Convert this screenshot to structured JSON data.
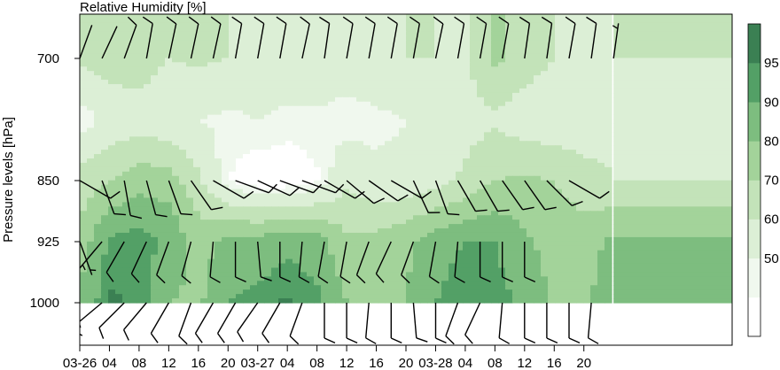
{
  "chart_data": {
    "type": "heatmap",
    "title": "Relative Humidity [%]",
    "ylabel": "Pressure levels [hPa]",
    "xlabel": "",
    "y_ticks": [
      700,
      850,
      925,
      1000
    ],
    "x_ticks": [
      "03-26",
      "04",
      "08",
      "12",
      "16",
      "20",
      "03-27",
      "04",
      "08",
      "12",
      "16",
      "20",
      "03-28",
      "04",
      "08",
      "12",
      "16",
      "20"
    ],
    "colorbar": {
      "ticks": [
        50,
        60,
        70,
        80,
        90,
        95
      ],
      "levels": [
        0,
        45,
        50,
        60,
        70,
        80,
        90,
        95,
        100
      ],
      "colors": [
        "#ffffff",
        "#f0f8ee",
        "#dcefd6",
        "#c3e3b9",
        "#a3d39a",
        "#7dbd7f",
        "#53a066",
        "#3b8053"
      ]
    },
    "times": [
      0,
      4,
      8,
      12,
      16,
      20,
      24,
      28,
      32,
      36,
      40,
      44,
      48,
      52,
      56,
      60,
      64,
      68,
      72
    ],
    "levels_hpa": [
      700,
      775,
      850,
      925,
      1000
    ],
    "rh": [
      [
        62,
        66,
        66,
        60,
        62,
        60,
        58,
        56,
        58,
        56,
        58,
        60,
        60,
        58,
        72,
        65,
        60,
        58,
        60
      ],
      [
        46,
        52,
        54,
        52,
        50,
        48,
        50,
        48,
        48,
        46,
        48,
        50,
        52,
        56,
        58,
        54,
        52,
        54,
        58
      ],
      [
        64,
        70,
        76,
        75,
        62,
        45,
        40,
        40,
        44,
        58,
        52,
        52,
        56,
        62,
        70,
        72,
        70,
        64,
        60
      ],
      [
        74,
        92,
        94,
        88,
        76,
        83,
        84,
        88,
        85,
        72,
        74,
        78,
        86,
        90,
        90,
        82,
        76,
        76,
        82
      ],
      [
        82,
        96,
        94,
        80,
        78,
        90,
        93,
        96,
        92,
        80,
        75,
        80,
        90,
        95,
        94,
        88,
        78,
        76,
        90
      ]
    ],
    "wind_barbs": {
      "700": [
        [
          0,
          2,
          20
        ],
        [
          3,
          2,
          25
        ],
        [
          6,
          10,
          20
        ],
        [
          9,
          10,
          10
        ],
        [
          12,
          10,
          12
        ],
        [
          15,
          10,
          12
        ],
        [
          18,
          10,
          12
        ],
        [
          21,
          10,
          10
        ],
        [
          24,
          10,
          10
        ],
        [
          27,
          10,
          10
        ],
        [
          30,
          10,
          12
        ],
        [
          33,
          10,
          8
        ],
        [
          36,
          10,
          10
        ],
        [
          39,
          10,
          10
        ],
        [
          42,
          10,
          10
        ],
        [
          45,
          10,
          10
        ],
        [
          48,
          10,
          12
        ],
        [
          51,
          10,
          10
        ],
        [
          54,
          10,
          10
        ],
        [
          57,
          10,
          10
        ],
        [
          60,
          10,
          8
        ],
        [
          63,
          10,
          8
        ],
        [
          66,
          10,
          10
        ],
        [
          69,
          10,
          8
        ],
        [
          72,
          8,
          8
        ]
      ],
      "850": [
        [
          0,
          10,
          120
        ],
        [
          3,
          10,
          160
        ],
        [
          6,
          10,
          170
        ],
        [
          9,
          10,
          165
        ],
        [
          12,
          10,
          160
        ],
        [
          15,
          10,
          145
        ],
        [
          18,
          10,
          120
        ],
        [
          21,
          10,
          110
        ],
        [
          24,
          10,
          115
        ],
        [
          27,
          10,
          110
        ],
        [
          30,
          10,
          110
        ],
        [
          33,
          10,
          120
        ],
        [
          36,
          10,
          130
        ],
        [
          39,
          10,
          125
        ],
        [
          42,
          10,
          120
        ],
        [
          45,
          10,
          155
        ],
        [
          48,
          10,
          160
        ],
        [
          51,
          10,
          150
        ],
        [
          54,
          10,
          150
        ],
        [
          57,
          10,
          145
        ],
        [
          60,
          10,
          145
        ],
        [
          63,
          10,
          135
        ],
        [
          66,
          10,
          120
        ]
      ],
      "925": [
        [
          0,
          5,
          160
        ],
        [
          3,
          5,
          220
        ],
        [
          6,
          10,
          210
        ],
        [
          9,
          10,
          205
        ],
        [
          12,
          10,
          200
        ],
        [
          15,
          10,
          195
        ],
        [
          18,
          10,
          185
        ],
        [
          21,
          10,
          180
        ],
        [
          24,
          10,
          175
        ],
        [
          27,
          10,
          180
        ],
        [
          30,
          10,
          185
        ],
        [
          33,
          10,
          190
        ],
        [
          36,
          10,
          190
        ],
        [
          39,
          10,
          200
        ],
        [
          42,
          10,
          205
        ],
        [
          45,
          10,
          200
        ],
        [
          48,
          10,
          190
        ],
        [
          51,
          10,
          185
        ],
        [
          54,
          10,
          180
        ],
        [
          57,
          10,
          180
        ],
        [
          60,
          10,
          180
        ]
      ],
      "1000": [
        [
          0,
          5,
          185
        ],
        [
          3,
          5,
          230
        ],
        [
          6,
          10,
          225
        ],
        [
          9,
          10,
          220
        ],
        [
          12,
          10,
          210
        ],
        [
          15,
          10,
          200
        ],
        [
          18,
          10,
          210
        ],
        [
          21,
          10,
          210
        ],
        [
          24,
          10,
          215
        ],
        [
          27,
          10,
          210
        ],
        [
          30,
          10,
          200
        ],
        [
          33,
          10,
          180
        ],
        [
          36,
          10,
          180
        ],
        [
          39,
          10,
          185
        ],
        [
          42,
          10,
          180
        ],
        [
          45,
          10,
          175
        ],
        [
          48,
          10,
          180
        ],
        [
          51,
          10,
          200
        ],
        [
          54,
          10,
          205
        ],
        [
          57,
          10,
          185
        ],
        [
          60,
          10,
          180
        ],
        [
          63,
          10,
          180
        ],
        [
          66,
          10,
          180
        ],
        [
          69,
          10,
          185
        ]
      ]
    }
  }
}
